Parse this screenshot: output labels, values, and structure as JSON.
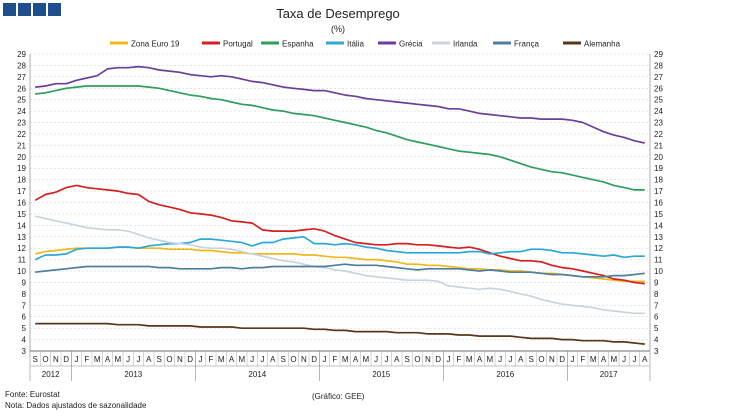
{
  "logo": {
    "label": "logo",
    "color": "#1e4f8c"
  },
  "chart_data": {
    "type": "line",
    "title": "Taxa de Desemprego",
    "subtitle": "(%)",
    "ylim": [
      3,
      29
    ],
    "y_ticks": [
      3,
      4,
      5,
      6,
      7,
      8,
      9,
      10,
      11,
      12,
      13,
      14,
      15,
      16,
      17,
      18,
      19,
      20,
      21,
      22,
      23,
      24,
      25,
      26,
      27,
      28,
      29
    ],
    "months": [
      "S",
      "O",
      "N",
      "D",
      "J",
      "F",
      "M",
      "A",
      "M",
      "J",
      "J",
      "A",
      "S",
      "O",
      "N",
      "D",
      "J",
      "F",
      "M",
      "A",
      "M",
      "J",
      "J",
      "A",
      "S",
      "O",
      "N",
      "D",
      "J",
      "F",
      "M",
      "A",
      "M",
      "J",
      "J",
      "A",
      "S",
      "O",
      "N",
      "D",
      "J",
      "F",
      "M",
      "A",
      "M",
      "J",
      "J",
      "A",
      "S",
      "O",
      "N",
      "D",
      "J",
      "F",
      "M",
      "A",
      "M",
      "J",
      "J",
      "A"
    ],
    "years": [
      {
        "label": "2012",
        "start": 0,
        "count": 4
      },
      {
        "label": "2013",
        "start": 4,
        "count": 12
      },
      {
        "label": "2014",
        "start": 16,
        "count": 12
      },
      {
        "label": "2015",
        "start": 28,
        "count": 12
      },
      {
        "label": "2016",
        "start": 40,
        "count": 12
      },
      {
        "label": "2017",
        "start": 52,
        "count": 8
      }
    ],
    "series": [
      {
        "name": "Zona Euro 19",
        "color": "#f0b818",
        "values": [
          11.5,
          11.7,
          11.8,
          11.9,
          12.0,
          12.0,
          12.0,
          12.0,
          12.1,
          12.1,
          12.0,
          12.0,
          12.0,
          11.9,
          11.9,
          11.9,
          11.8,
          11.8,
          11.7,
          11.6,
          11.6,
          11.5,
          11.5,
          11.5,
          11.5,
          11.5,
          11.4,
          11.4,
          11.3,
          11.2,
          11.2,
          11.1,
          11.0,
          11.0,
          10.9,
          10.8,
          10.6,
          10.6,
          10.5,
          10.5,
          10.4,
          10.3,
          10.2,
          10.2,
          10.1,
          10.1,
          10.0,
          10.0,
          9.9,
          9.8,
          9.8,
          9.7,
          9.6,
          9.5,
          9.4,
          9.3,
          9.2,
          9.1,
          9.1,
          9.1
        ]
      },
      {
        "name": "Portugal",
        "color": "#d62020",
        "values": [
          16.2,
          16.7,
          16.9,
          17.3,
          17.5,
          17.3,
          17.2,
          17.1,
          17.0,
          16.8,
          16.7,
          16.1,
          15.8,
          15.6,
          15.4,
          15.1,
          15.0,
          14.9,
          14.7,
          14.4,
          14.3,
          14.2,
          13.6,
          13.5,
          13.5,
          13.5,
          13.6,
          13.7,
          13.5,
          13.1,
          12.8,
          12.5,
          12.4,
          12.3,
          12.3,
          12.4,
          12.4,
          12.3,
          12.3,
          12.2,
          12.1,
          12.0,
          12.1,
          11.9,
          11.6,
          11.3,
          11.1,
          10.9,
          10.9,
          10.8,
          10.5,
          10.3,
          10.2,
          10.0,
          9.8,
          9.6,
          9.3,
          9.2,
          9.0,
          8.9
        ]
      },
      {
        "name": "Espanha",
        "color": "#2e9e5b",
        "values": [
          25.5,
          25.6,
          25.8,
          26.0,
          26.1,
          26.2,
          26.2,
          26.2,
          26.2,
          26.2,
          26.2,
          26.1,
          26.0,
          25.8,
          25.6,
          25.4,
          25.3,
          25.1,
          25.0,
          24.8,
          24.6,
          24.5,
          24.3,
          24.1,
          24.0,
          23.8,
          23.7,
          23.6,
          23.4,
          23.2,
          23.0,
          22.8,
          22.6,
          22.3,
          22.1,
          21.8,
          21.5,
          21.3,
          21.1,
          20.9,
          20.7,
          20.5,
          20.4,
          20.3,
          20.2,
          20.0,
          19.7,
          19.4,
          19.1,
          18.9,
          18.7,
          18.6,
          18.4,
          18.2,
          18.0,
          17.8,
          17.5,
          17.3,
          17.1,
          17.1
        ]
      },
      {
        "name": "Itália",
        "color": "#2aa8d8",
        "values": [
          11.0,
          11.4,
          11.4,
          11.5,
          11.9,
          12.0,
          12.0,
          12.0,
          12.1,
          12.1,
          12.0,
          12.2,
          12.3,
          12.4,
          12.4,
          12.5,
          12.8,
          12.8,
          12.7,
          12.6,
          12.5,
          12.2,
          12.5,
          12.5,
          12.8,
          12.9,
          13.0,
          12.4,
          12.4,
          12.3,
          12.4,
          12.3,
          12.1,
          12.0,
          11.8,
          11.7,
          11.6,
          11.6,
          11.6,
          11.6,
          11.6,
          11.6,
          11.7,
          11.7,
          11.5,
          11.6,
          11.7,
          11.7,
          11.9,
          11.9,
          11.8,
          11.6,
          11.6,
          11.5,
          11.4,
          11.3,
          11.4,
          11.2,
          11.3,
          11.3
        ]
      },
      {
        "name": "Grécia",
        "color": "#6b3f98",
        "values": [
          26.1,
          26.2,
          26.4,
          26.4,
          26.7,
          26.9,
          27.1,
          27.7,
          27.8,
          27.8,
          27.9,
          27.8,
          27.6,
          27.5,
          27.4,
          27.2,
          27.1,
          27.0,
          27.1,
          27.0,
          26.8,
          26.6,
          26.5,
          26.3,
          26.1,
          26.0,
          25.9,
          25.8,
          25.8,
          25.6,
          25.4,
          25.3,
          25.1,
          25.0,
          24.9,
          24.8,
          24.7,
          24.6,
          24.5,
          24.4,
          24.2,
          24.2,
          24.0,
          23.8,
          23.7,
          23.6,
          23.5,
          23.4,
          23.4,
          23.3,
          23.3,
          23.3,
          23.2,
          23.0,
          22.6,
          22.2,
          21.9,
          21.7,
          21.4,
          21.2
        ]
      },
      {
        "name": "Irlanda",
        "color": "#c6d4e0",
        "values": [
          14.8,
          14.6,
          14.4,
          14.2,
          14.0,
          13.8,
          13.7,
          13.6,
          13.6,
          13.5,
          13.2,
          12.9,
          12.7,
          12.5,
          12.4,
          12.3,
          12.1,
          12.0,
          12.0,
          11.9,
          11.7,
          11.5,
          11.3,
          11.1,
          10.9,
          10.8,
          10.6,
          10.4,
          10.3,
          10.1,
          10.0,
          9.8,
          9.6,
          9.5,
          9.4,
          9.3,
          9.2,
          9.2,
          9.2,
          9.1,
          8.7,
          8.6,
          8.5,
          8.4,
          8.5,
          8.4,
          8.2,
          8.0,
          7.8,
          7.5,
          7.3,
          7.1,
          7.0,
          6.9,
          6.8,
          6.6,
          6.5,
          6.4,
          6.3,
          6.3
        ]
      },
      {
        "name": "França",
        "color": "#4c7ea0",
        "values": [
          9.9,
          10.0,
          10.1,
          10.2,
          10.3,
          10.4,
          10.4,
          10.4,
          10.4,
          10.4,
          10.4,
          10.4,
          10.3,
          10.3,
          10.2,
          10.2,
          10.2,
          10.2,
          10.3,
          10.3,
          10.2,
          10.3,
          10.3,
          10.4,
          10.4,
          10.4,
          10.4,
          10.4,
          10.4,
          10.5,
          10.6,
          10.5,
          10.5,
          10.5,
          10.4,
          10.3,
          10.2,
          10.1,
          10.2,
          10.2,
          10.2,
          10.2,
          10.1,
          10.0,
          10.1,
          10.0,
          9.9,
          9.9,
          9.9,
          9.8,
          9.7,
          9.7,
          9.6,
          9.5,
          9.5,
          9.5,
          9.6,
          9.6,
          9.7,
          9.8
        ]
      },
      {
        "name": "Alemanha",
        "color": "#5a3718",
        "values": [
          5.4,
          5.4,
          5.4,
          5.4,
          5.4,
          5.4,
          5.4,
          5.4,
          5.3,
          5.3,
          5.3,
          5.2,
          5.2,
          5.2,
          5.2,
          5.2,
          5.1,
          5.1,
          5.1,
          5.1,
          5.0,
          5.0,
          5.0,
          5.0,
          5.0,
          5.0,
          5.0,
          4.9,
          4.9,
          4.8,
          4.8,
          4.7,
          4.7,
          4.7,
          4.7,
          4.6,
          4.6,
          4.6,
          4.5,
          4.5,
          4.5,
          4.4,
          4.4,
          4.3,
          4.3,
          4.3,
          4.3,
          4.2,
          4.1,
          4.1,
          4.1,
          4.0,
          4.0,
          3.9,
          3.9,
          3.9,
          3.8,
          3.8,
          3.7,
          3.6
        ]
      }
    ]
  },
  "footer": {
    "source": "Fonte: Eurostat",
    "note": "Nota: Dados ajustados de sazonalidade",
    "credit": "(Gráfico: GEE)"
  }
}
